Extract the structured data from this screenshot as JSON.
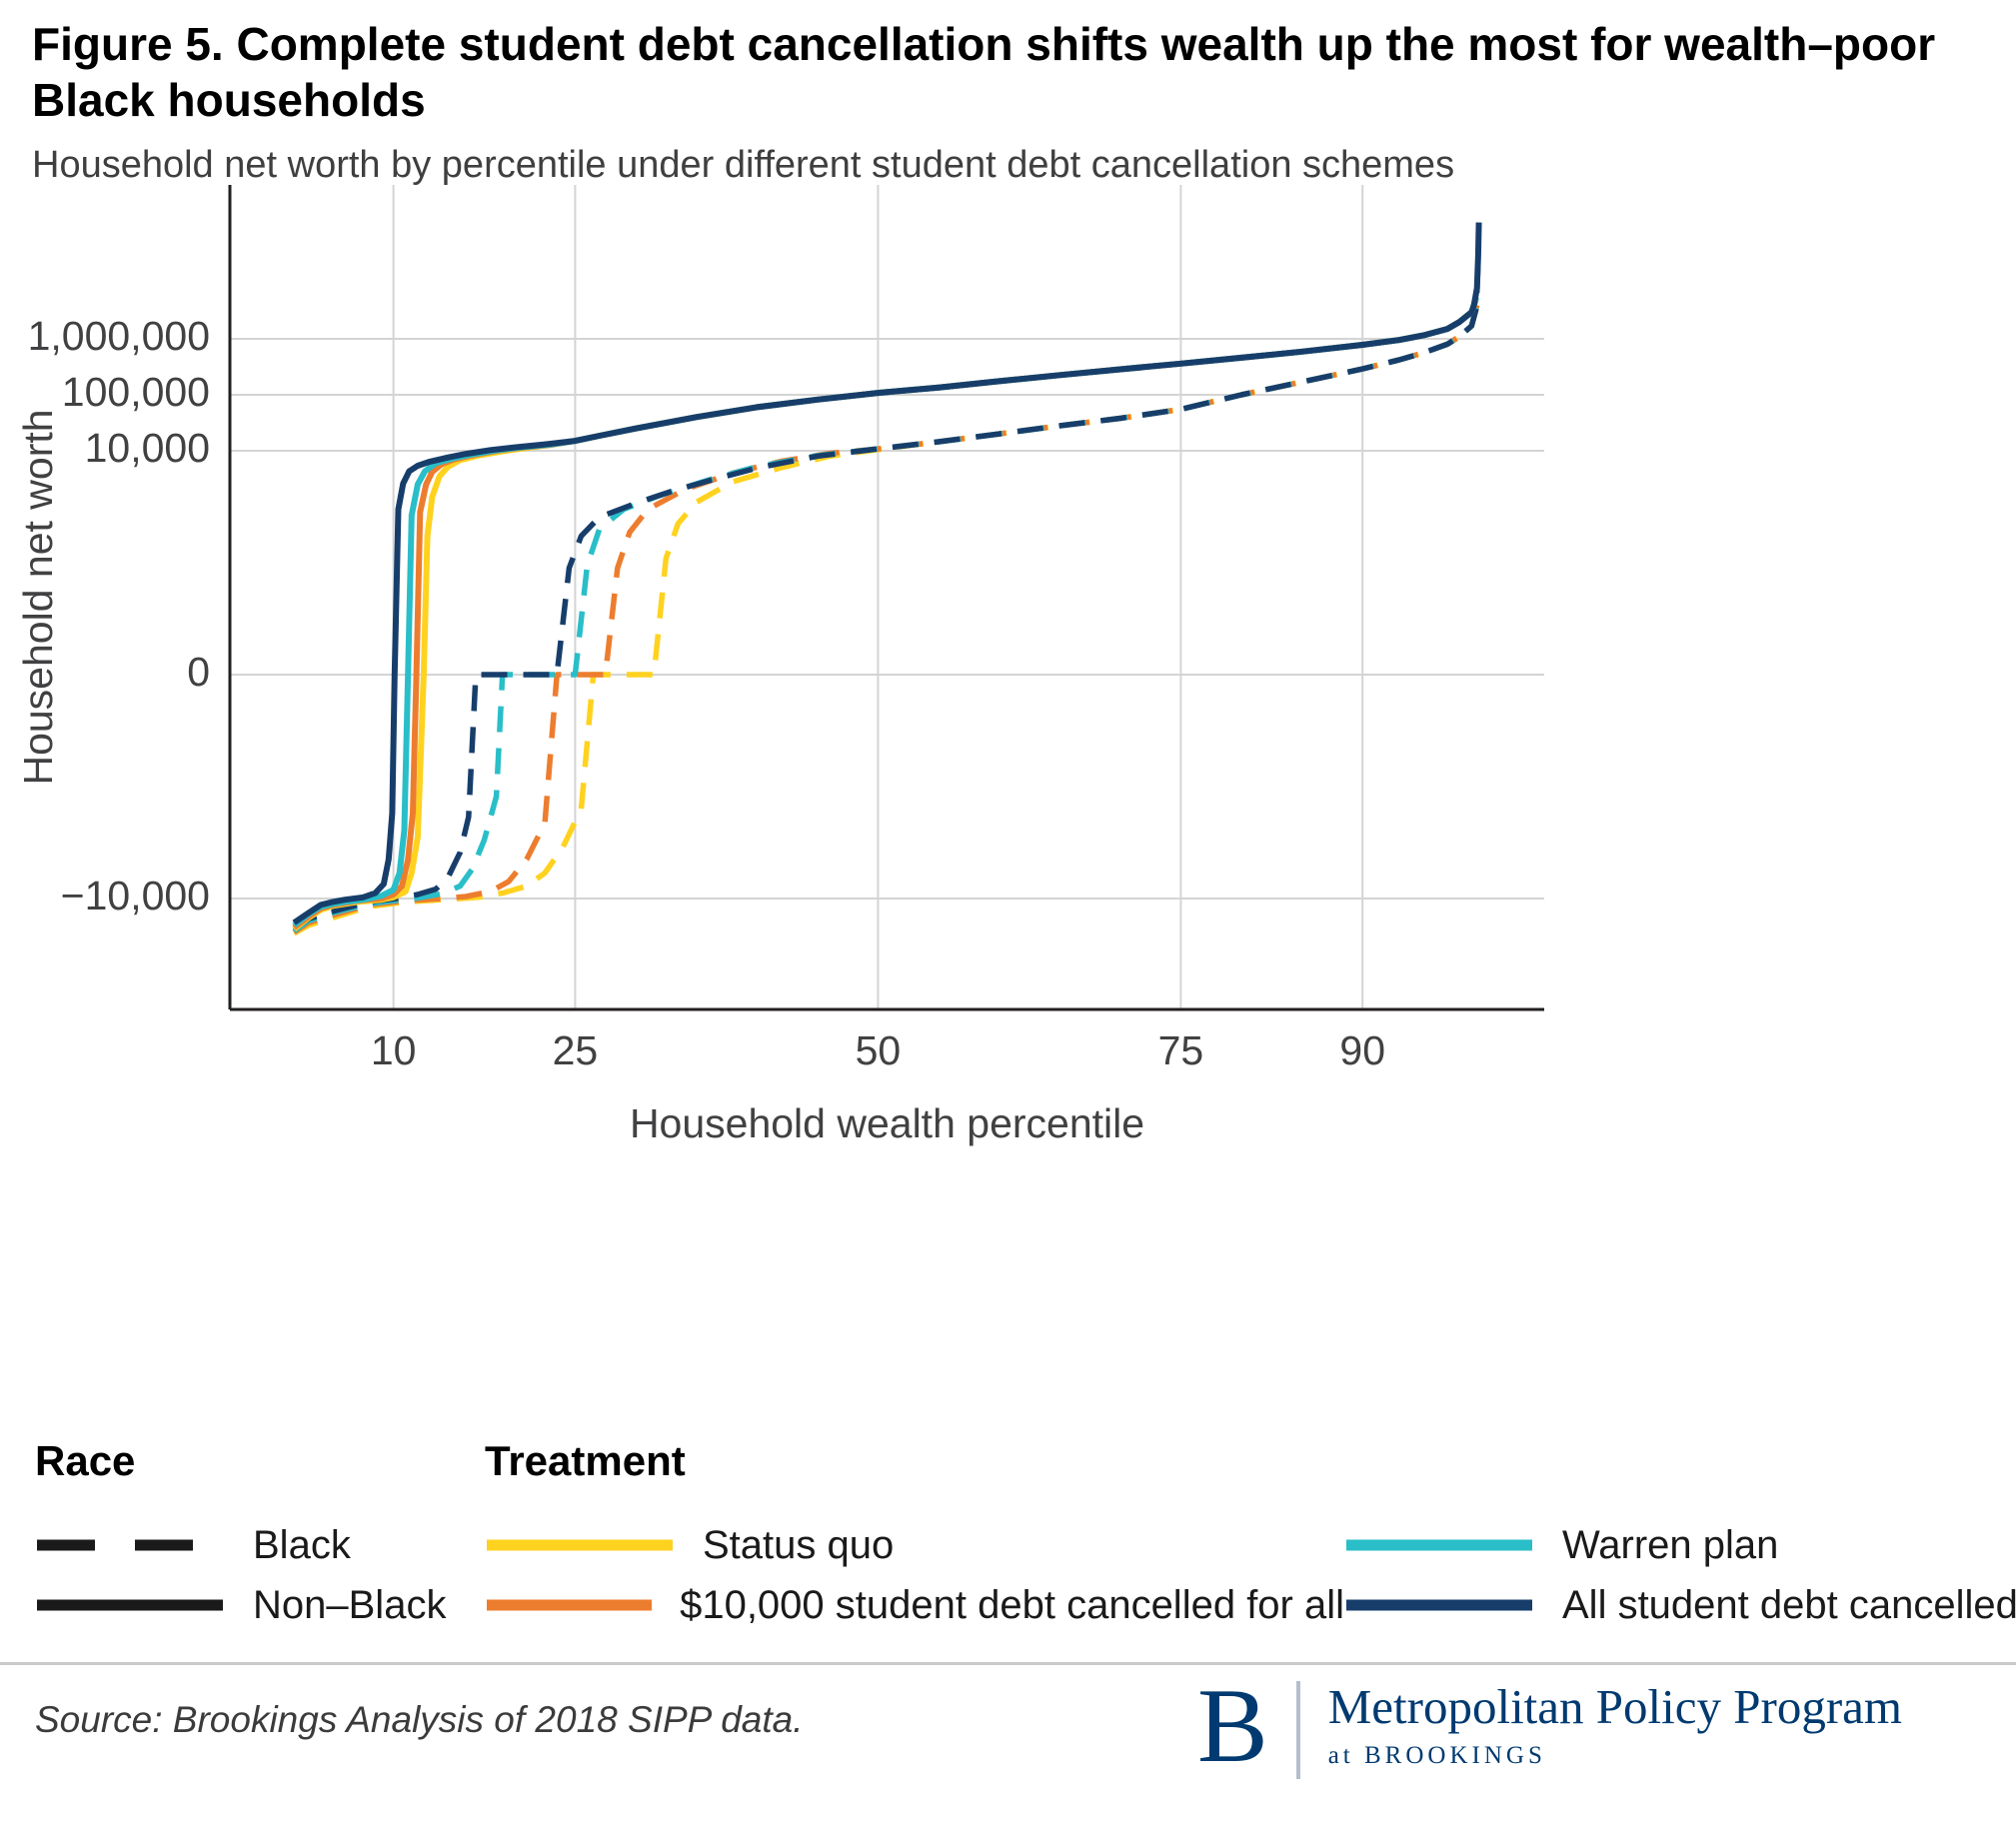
{
  "title": "Figure 5. Complete student debt cancellation shifts wealth up the most for wealth–poor Black households",
  "subtitle": "Household net worth by percentile under different student debt cancellation schemes",
  "footer": {
    "source": "Source: Brookings Analysis of 2018 SIPP data."
  },
  "logo": {
    "letter": "B",
    "program": "Metropolitan Policy Program",
    "sub": "at BROOKINGS"
  },
  "colors": {
    "yellow": "#FFD21F",
    "orange": "#ED7D2E",
    "teal": "#29BEC8",
    "navy": "#173E6B",
    "grid": "#d4d4d4",
    "axis": "#231f20",
    "tick_text": "#414042",
    "legend_sample": "#1a1a1a"
  },
  "legend": {
    "race_title": "Race",
    "treatment_title": "Treatment",
    "race_items": [
      {
        "label": "Black",
        "style": "dashed"
      },
      {
        "label": "Non–Black",
        "style": "solid"
      }
    ],
    "treatment_items": [
      {
        "label": "Status quo",
        "color": "#FFD21F"
      },
      {
        "label": "Warren plan",
        "color": "#29BEC8"
      },
      {
        "label": "$10,000 student debt cancelled for all",
        "color": "#ED7D2E"
      },
      {
        "label": "All student debt cancelled",
        "color": "#173E6B"
      }
    ]
  },
  "chart_data": {
    "type": "line",
    "title": "Household net worth by percentile under different student debt cancellation schemes",
    "xlabel": "Household wealth percentile",
    "ylabel": "Household net worth",
    "x_range": [
      -3.5,
      105
    ],
    "x_ticks": [
      10,
      25,
      50,
      75,
      90
    ],
    "x_tick_labels": [
      "10",
      "25",
      "50",
      "75",
      "90"
    ],
    "y_ticks": [
      1000000,
      100000,
      10000,
      0,
      -10000
    ],
    "y_tick_labels": [
      "1,000,000",
      "100,000",
      "10,000",
      "0",
      "−10,000"
    ],
    "y_scale": "symlog, one decade per gridline step, linear threshold 1",
    "grid": true,
    "legend_position": "below",
    "shared_tails": {
      "dashed_tail": [
        [
          55,
          14500
        ],
        [
          60,
          20000
        ],
        [
          65,
          28000
        ],
        [
          70,
          38000
        ],
        [
          75,
          55000
        ],
        [
          80,
          100000
        ],
        [
          85,
          170000
        ],
        [
          90,
          290000
        ],
        [
          93,
          420000
        ],
        [
          95,
          560000
        ],
        [
          97,
          800000
        ],
        [
          98,
          1100000
        ],
        [
          99,
          1700000
        ]
      ],
      "solid_tail": [
        [
          25,
          15000
        ],
        [
          27,
          18500
        ],
        [
          30,
          25000
        ],
        [
          35,
          40000
        ],
        [
          40,
          60000
        ],
        [
          45,
          82000
        ],
        [
          50,
          108000
        ],
        [
          55,
          135000
        ],
        [
          60,
          175000
        ],
        [
          65,
          225000
        ],
        [
          70,
          285000
        ],
        [
          75,
          360000
        ],
        [
          80,
          460000
        ],
        [
          85,
          590000
        ],
        [
          90,
          780000
        ],
        [
          93,
          950000
        ],
        [
          95,
          1150000
        ],
        [
          97,
          1500000
        ],
        [
          98,
          2000000
        ],
        [
          99,
          3000000
        ]
      ]
    },
    "series": [
      {
        "id": "black-status-quo",
        "race": "Black",
        "treatment": "Status quo",
        "color": "#FFD21F",
        "dash": true,
        "points": [
          [
            1.8,
            -42000
          ],
          [
            3,
            -30000
          ],
          [
            5,
            -22000
          ],
          [
            8,
            -14000
          ],
          [
            11,
            -11500
          ],
          [
            14,
            -10500
          ],
          [
            17,
            -9500
          ],
          [
            19,
            -8000
          ],
          [
            21,
            -6000
          ],
          [
            22.5,
            -3500
          ],
          [
            24,
            -1200
          ],
          [
            25.5,
            -250
          ],
          [
            26.5,
            0
          ],
          [
            31.5,
            0
          ],
          [
            32.5,
            120
          ],
          [
            33.5,
            500
          ],
          [
            35,
            1200
          ],
          [
            38,
            2800
          ],
          [
            42,
            5000
          ],
          [
            46,
            8000
          ],
          [
            50,
            10500
          ]
        ],
        "tail": "dashed_tail",
        "extra": [
          [
            99.4,
            3500000
          ]
        ]
      },
      {
        "id": "black-10k",
        "race": "Black",
        "treatment": "$10,000 student debt cancelled for all",
        "color": "#ED7D2E",
        "dash": true,
        "points": [
          [
            1.8,
            -40000
          ],
          [
            3,
            -27000
          ],
          [
            5,
            -20000
          ],
          [
            8,
            -13000
          ],
          [
            11,
            -11000
          ],
          [
            14,
            -10000
          ],
          [
            16,
            -9200
          ],
          [
            18,
            -7500
          ],
          [
            19.5,
            -5000
          ],
          [
            21,
            -2000
          ],
          [
            22.5,
            -450
          ],
          [
            23.5,
            0
          ],
          [
            27.5,
            0
          ],
          [
            28.5,
            80
          ],
          [
            29.5,
            350
          ],
          [
            31,
            900
          ],
          [
            34,
            2000
          ],
          [
            38,
            4000
          ],
          [
            42,
            6500
          ],
          [
            46,
            9000
          ],
          [
            50,
            10800
          ]
        ],
        "tail": "dashed_tail",
        "extra": [
          [
            99.45,
            4000000
          ]
        ]
      },
      {
        "id": "black-warren",
        "race": "Black",
        "treatment": "Warren plan",
        "color": "#29BEC8",
        "dash": true,
        "points": [
          [
            1.8,
            -38000
          ],
          [
            3,
            -25000
          ],
          [
            5,
            -18000
          ],
          [
            8,
            -12500
          ],
          [
            10,
            -11000
          ],
          [
            12,
            -9800
          ],
          [
            14,
            -8200
          ],
          [
            15.5,
            -6000
          ],
          [
            16.5,
            -3000
          ],
          [
            17.5,
            -900
          ],
          [
            18.5,
            -150
          ],
          [
            19,
            0
          ],
          [
            25,
            0
          ],
          [
            26,
            90
          ],
          [
            27,
            400
          ],
          [
            29,
            900
          ],
          [
            32,
            1600
          ],
          [
            36,
            3000
          ],
          [
            40,
            5200
          ],
          [
            45,
            8200
          ],
          [
            50,
            10800
          ]
        ],
        "tail": "dashed_tail",
        "extra": [
          [
            99.5,
            4500000
          ]
        ]
      },
      {
        "id": "black-all-cancelled",
        "race": "Black",
        "treatment": "All student debt cancelled",
        "color": "#173E6B",
        "dash": true,
        "points": [
          [
            1.8,
            -35000
          ],
          [
            3,
            -23000
          ],
          [
            5,
            -17000
          ],
          [
            8,
            -11500
          ],
          [
            10,
            -10200
          ],
          [
            12,
            -8500
          ],
          [
            13.5,
            -6800
          ],
          [
            14.5,
            -4200
          ],
          [
            15.5,
            -1500
          ],
          [
            16.2,
            -350
          ],
          [
            16.8,
            0
          ],
          [
            23.5,
            0
          ],
          [
            24.5,
            80
          ],
          [
            25.5,
            300
          ],
          [
            27,
            650
          ],
          [
            30,
            1150
          ],
          [
            33,
            1900
          ],
          [
            36,
            2900
          ],
          [
            40,
            4900
          ],
          [
            45,
            8000
          ],
          [
            50,
            10800
          ]
        ],
        "tail": "dashed_tail",
        "extra": [
          [
            99.4,
            3500000
          ],
          [
            99.55,
            25000000
          ]
        ]
      },
      {
        "id": "nonblack-status-quo",
        "race": "Non–Black",
        "treatment": "Status quo",
        "color": "#FFD21F",
        "dash": false,
        "points": [
          [
            1.8,
            -35000
          ],
          [
            3,
            -22000
          ],
          [
            4,
            -16000
          ],
          [
            5,
            -13500
          ],
          [
            7,
            -11500
          ],
          [
            9,
            -10500
          ],
          [
            10,
            -9500
          ],
          [
            11,
            -7500
          ],
          [
            11.5,
            -3500
          ],
          [
            12,
            -800
          ],
          [
            12.5,
            0
          ],
          [
            12.8,
            300
          ],
          [
            13.2,
            1500
          ],
          [
            13.8,
            3500
          ],
          [
            14.5,
            5200
          ],
          [
            15.5,
            6800
          ],
          [
            17,
            8200
          ],
          [
            19,
            9800
          ],
          [
            21,
            11200
          ],
          [
            23,
            12800
          ]
        ],
        "tail": "solid_tail",
        "extra": [
          [
            99.35,
            5000000
          ]
        ]
      },
      {
        "id": "nonblack-10k",
        "race": "Non–Black",
        "treatment": "$10,000 student debt cancelled for all",
        "color": "#ED7D2E",
        "dash": false,
        "points": [
          [
            1.8,
            -33000
          ],
          [
            3,
            -21000
          ],
          [
            4,
            -15000
          ],
          [
            5,
            -13000
          ],
          [
            7,
            -11000
          ],
          [
            9,
            -10000
          ],
          [
            10,
            -8500
          ],
          [
            10.7,
            -6000
          ],
          [
            11.2,
            -2000
          ],
          [
            11.6,
            -300
          ],
          [
            11.9,
            0
          ],
          [
            12.2,
            800
          ],
          [
            12.7,
            2500
          ],
          [
            13.2,
            4200
          ],
          [
            14,
            5800
          ],
          [
            15,
            7000
          ],
          [
            16.5,
            8300
          ],
          [
            18.5,
            10000
          ],
          [
            20.5,
            11300
          ],
          [
            23,
            12800
          ]
        ],
        "tail": "solid_tail",
        "extra": [
          [
            99.35,
            5000000
          ]
        ]
      },
      {
        "id": "nonblack-warren",
        "race": "Non–Black",
        "treatment": "Warren plan",
        "color": "#29BEC8",
        "dash": false,
        "points": [
          [
            1.8,
            -30000
          ],
          [
            3,
            -19000
          ],
          [
            4,
            -14000
          ],
          [
            5,
            -12500
          ],
          [
            6,
            -11500
          ],
          [
            7.5,
            -10500
          ],
          [
            9,
            -9000
          ],
          [
            10,
            -7000
          ],
          [
            10.5,
            -3500
          ],
          [
            10.9,
            -600
          ],
          [
            11.2,
            0
          ],
          [
            11.5,
            700
          ],
          [
            12,
            2500
          ],
          [
            12.6,
            4300
          ],
          [
            13.5,
            6000
          ],
          [
            15,
            7400
          ],
          [
            16.5,
            8600
          ],
          [
            18.5,
            10200
          ],
          [
            20.5,
            11500
          ],
          [
            23,
            13000
          ]
        ],
        "tail": "solid_tail",
        "extra": [
          [
            99.4,
            5500000
          ]
        ]
      },
      {
        "id": "nonblack-all-cancelled",
        "race": "Non–Black",
        "treatment": "All student debt cancelled",
        "color": "#173E6B",
        "dash": false,
        "points": [
          [
            1.8,
            -27000
          ],
          [
            3,
            -18000
          ],
          [
            4,
            -13000
          ],
          [
            5,
            -11500
          ],
          [
            6,
            -10500
          ],
          [
            7.5,
            -9500
          ],
          [
            8.5,
            -8000
          ],
          [
            9.2,
            -5500
          ],
          [
            9.6,
            -2000
          ],
          [
            9.9,
            -300
          ],
          [
            10.1,
            0
          ],
          [
            10.4,
            900
          ],
          [
            10.8,
            2600
          ],
          [
            11.3,
            4300
          ],
          [
            12,
            5400
          ],
          [
            13,
            6400
          ],
          [
            14.5,
            7600
          ],
          [
            16,
            8800
          ],
          [
            18,
            10300
          ],
          [
            20,
            11500
          ],
          [
            22.5,
            13000
          ]
        ],
        "tail": "solid_tail",
        "extra": [
          [
            99.2,
            4000000
          ],
          [
            99.45,
            8000000
          ],
          [
            99.55,
            30000000
          ],
          [
            99.6,
            120000000
          ]
        ]
      }
    ]
  }
}
